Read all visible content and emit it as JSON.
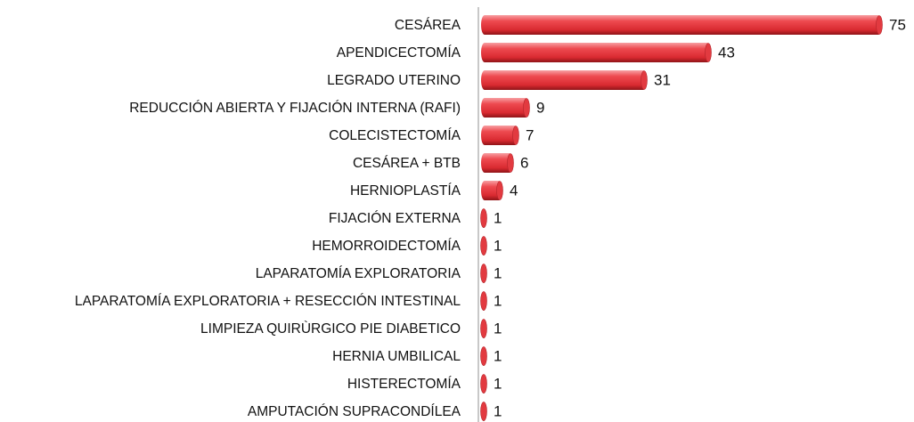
{
  "chart_data": {
    "type": "bar",
    "orientation": "horizontal",
    "color": "#e8353b",
    "categories": [
      "CESÁREA",
      "APENDICECTOMÍA",
      "LEGRADO UTERINO",
      "REDUCCIÓN ABIERTA Y FIJACIÓN INTERNA (RAFI)",
      "COLECISTECTOMÍA",
      "CESÁREA + BTB",
      "HERNIOPLASTÍA",
      "FIJACIÓN EXTERNA",
      "HEMORROIDECTOMÍA",
      "LAPARATOMÍA EXPLORATORIA",
      "LAPARATOMÍA EXPLORATORIA + RESECCIÓN INTESTINAL",
      "LIMPIEZA QUIRÙRGICO PIE DIABETICO",
      "HERNIA UMBILICAL",
      "HISTERECTOMÍA",
      "AMPUTACIÓN SUPRACONDÍLEA"
    ],
    "values": [
      75,
      43,
      31,
      9,
      7,
      6,
      4,
      1,
      1,
      1,
      1,
      1,
      1,
      1,
      1
    ]
  }
}
